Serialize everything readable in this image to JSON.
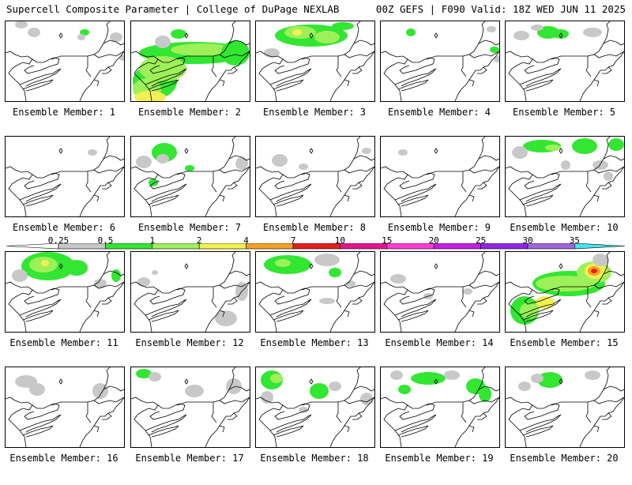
{
  "header": {
    "left_title": "Supercell Composite Parameter | College of DuPage NEXLAB",
    "right_title": "00Z GEFS | F090 Valid: 18Z WED JUN 11 2025"
  },
  "colorbar": {
    "ticks": [
      "0.25",
      "0.5",
      "1",
      "2",
      "4",
      "7",
      "10",
      "15",
      "20",
      "25",
      "30",
      "35"
    ],
    "colors": [
      "#c8c8c8",
      "#32e632",
      "#9ef05a",
      "#f0f050",
      "#f5a028",
      "#e61e1e",
      "#e6148c",
      "#ff3cd2",
      "#c31ee6",
      "#8c28e6",
      "#a064dc",
      "#46e6f0"
    ]
  },
  "legend_colors": {
    "low": "#c8c8c8",
    "green": "#32e632",
    "lightgreen": "#9ef05a",
    "yellow": "#f0f050",
    "orange": "#f5a028",
    "red": "#e61e1e"
  },
  "panels": [
    {
      "label": "Ensemble Member: 1"
    },
    {
      "label": "Ensemble Member: 2"
    },
    {
      "label": "Ensemble Member: 3"
    },
    {
      "label": "Ensemble Member: 4"
    },
    {
      "label": "Ensemble Member: 5"
    },
    {
      "label": "Ensemble Member: 6"
    },
    {
      "label": "Ensemble Member: 7"
    },
    {
      "label": "Ensemble Member: 8"
    },
    {
      "label": "Ensemble Member: 9"
    },
    {
      "label": "Ensemble Member: 10"
    },
    {
      "label": "Ensemble Member: 11"
    },
    {
      "label": "Ensemble Member: 12"
    },
    {
      "label": "Ensemble Member: 13"
    },
    {
      "label": "Ensemble Member: 14"
    },
    {
      "label": "Ensemble Member: 15"
    },
    {
      "label": "Ensemble Member: 16"
    },
    {
      "label": "Ensemble Member: 17"
    },
    {
      "label": "Ensemble Member: 18"
    },
    {
      "label": "Ensemble Member: 19"
    },
    {
      "label": "Ensemble Member: 20"
    }
  ]
}
